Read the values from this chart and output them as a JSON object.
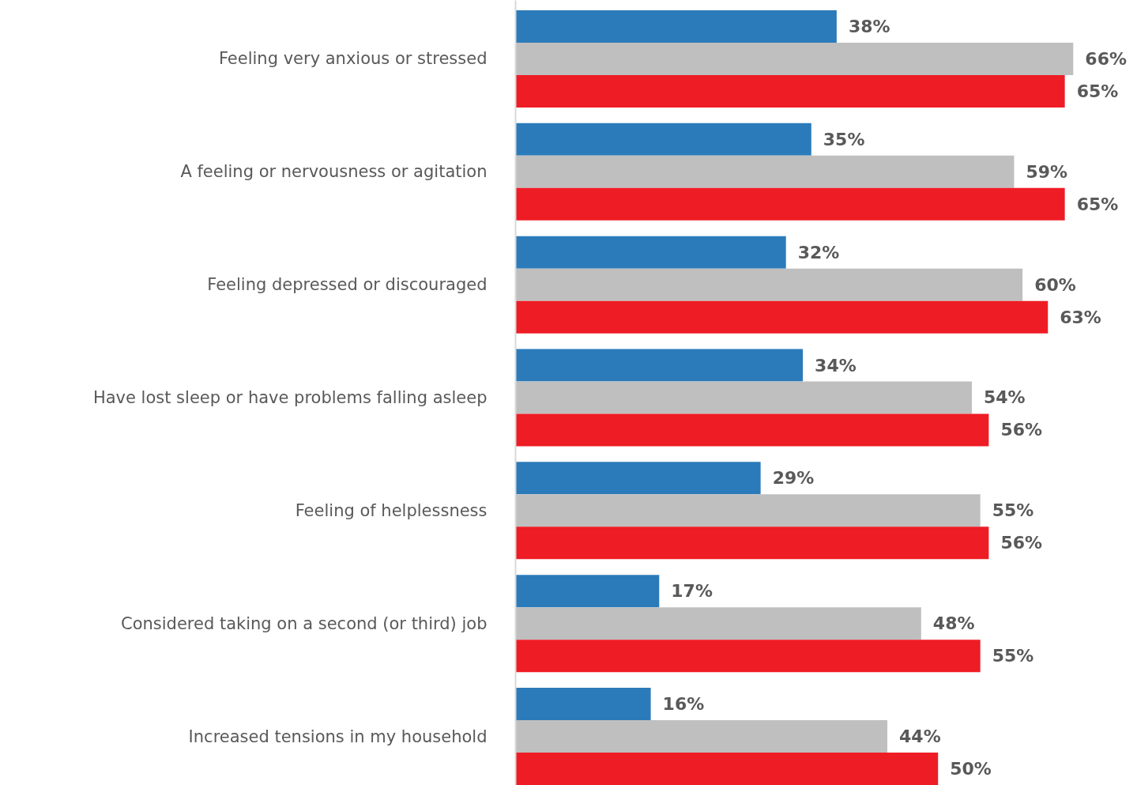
{
  "chart_data": {
    "type": "bar",
    "orientation": "horizontal",
    "grid": false,
    "categories": [
      "Feeling very anxious or stressed",
      "A feeling or nervousness or agitation",
      "Feeling depressed or discouraged",
      "Have lost sleep or have problems falling asleep",
      "Feeling of helplessness",
      "Considered taking on a second (or third) job",
      "Increased tensions in my household"
    ],
    "series": [
      {
        "color": "#2b7bba",
        "values": [
          38,
          35,
          32,
          34,
          29,
          17,
          16
        ],
        "value_labels": [
          "38%",
          "35%",
          "32%",
          "34%",
          "29%",
          "17%",
          "16%"
        ]
      },
      {
        "color": "#bfbfbf",
        "values": [
          66,
          59,
          60,
          54,
          55,
          48,
          44
        ],
        "value_labels": [
          "66%",
          "59%",
          "60%",
          "54%",
          "55%",
          "48%",
          "44%"
        ]
      },
      {
        "color": "#ee1c25",
        "values": [
          65,
          65,
          63,
          56,
          56,
          55,
          50
        ],
        "value_labels": [
          "65%",
          "65%",
          "63%",
          "56%",
          "56%",
          "55%",
          "50%"
        ]
      }
    ]
  }
}
